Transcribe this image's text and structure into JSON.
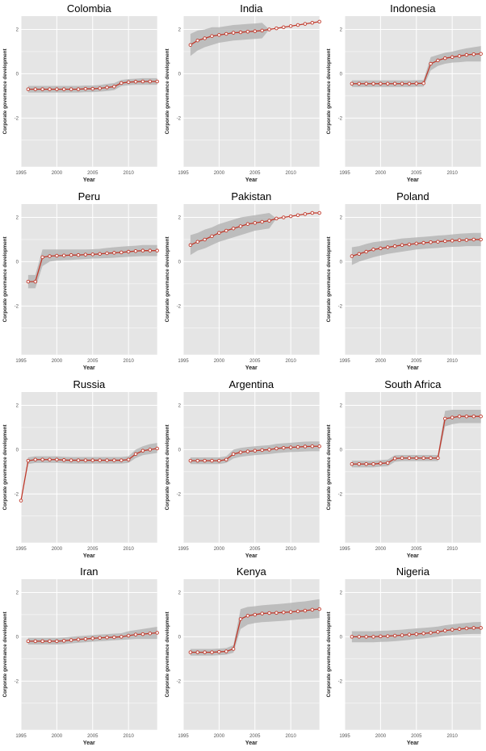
{
  "figure": {
    "ylabel": "Corporate governance development",
    "xlabel": "Year",
    "xticks": [
      1995,
      2000,
      2005,
      2010
    ],
    "yticks": [
      2,
      0,
      -2
    ],
    "xlim": [
      1995,
      2014
    ],
    "ylim": [
      -4.2,
      2.6
    ],
    "colors": {
      "panel_bg": "#e5e5e5",
      "grid": "#ffffff",
      "ribbon": "#b3b3b3",
      "line": "#c0392b",
      "point_fill": "#ffffff"
    }
  },
  "chart_data": [
    {
      "type": "line",
      "title": "Colombia",
      "x": [
        1996,
        1997,
        1998,
        1999,
        2000,
        2001,
        2002,
        2003,
        2004,
        2005,
        2006,
        2007,
        2008,
        2009,
        2010,
        2011,
        2012,
        2013,
        2014
      ],
      "series": [
        {
          "values": [
            -0.7,
            -0.7,
            -0.7,
            -0.7,
            -0.7,
            -0.7,
            -0.7,
            -0.7,
            -0.68,
            -0.68,
            -0.66,
            -0.62,
            -0.58,
            -0.42,
            -0.38,
            -0.36,
            -0.35,
            -0.35,
            -0.35
          ],
          "lower": [
            -0.85,
            -0.85,
            -0.85,
            -0.85,
            -0.85,
            -0.85,
            -0.85,
            -0.85,
            -0.83,
            -0.83,
            -0.81,
            -0.78,
            -0.74,
            -0.56,
            -0.52,
            -0.5,
            -0.5,
            -0.5,
            -0.5
          ],
          "upper": [
            -0.55,
            -0.55,
            -0.55,
            -0.55,
            -0.55,
            -0.55,
            -0.55,
            -0.55,
            -0.53,
            -0.53,
            -0.51,
            -0.46,
            -0.42,
            -0.28,
            -0.24,
            -0.22,
            -0.2,
            -0.2,
            -0.2
          ]
        }
      ]
    },
    {
      "type": "line",
      "title": "India",
      "x": [
        1996,
        1997,
        1998,
        1999,
        2000,
        2001,
        2002,
        2003,
        2004,
        2005,
        2006,
        2007,
        2008,
        2009,
        2010,
        2011,
        2012,
        2013,
        2014
      ],
      "series": [
        {
          "values": [
            1.3,
            1.5,
            1.6,
            1.7,
            1.75,
            1.8,
            1.85,
            1.87,
            1.9,
            1.92,
            1.95,
            2.0,
            2.05,
            2.1,
            2.15,
            2.2,
            2.25,
            2.3,
            2.35
          ],
          "lower": [
            0.8,
            1.05,
            1.2,
            1.3,
            1.4,
            1.45,
            1.5,
            1.52,
            1.55,
            1.57,
            1.6,
            2.0,
            2.05,
            2.1,
            2.15,
            2.2,
            2.25,
            2.3,
            2.35
          ],
          "upper": [
            1.8,
            1.95,
            2.0,
            2.1,
            2.1,
            2.15,
            2.2,
            2.22,
            2.25,
            2.27,
            2.3,
            2.0,
            2.05,
            2.1,
            2.15,
            2.2,
            2.25,
            2.3,
            2.35
          ]
        }
      ]
    },
    {
      "type": "line",
      "title": "Indonesia",
      "x": [
        1996,
        1997,
        1998,
        1999,
        2000,
        2001,
        2002,
        2003,
        2004,
        2005,
        2006,
        2007,
        2008,
        2009,
        2010,
        2011,
        2012,
        2013,
        2014
      ],
      "series": [
        {
          "values": [
            -0.45,
            -0.45,
            -0.45,
            -0.45,
            -0.45,
            -0.45,
            -0.45,
            -0.45,
            -0.45,
            -0.44,
            -0.43,
            0.45,
            0.6,
            0.7,
            0.75,
            0.8,
            0.85,
            0.88,
            0.9
          ],
          "lower": [
            -0.6,
            -0.6,
            -0.6,
            -0.6,
            -0.6,
            -0.6,
            -0.6,
            -0.6,
            -0.6,
            -0.59,
            -0.58,
            0.15,
            0.35,
            0.45,
            0.5,
            0.52,
            0.55,
            0.55,
            0.55
          ],
          "upper": [
            -0.3,
            -0.3,
            -0.3,
            -0.3,
            -0.3,
            -0.3,
            -0.3,
            -0.3,
            -0.3,
            -0.29,
            -0.28,
            0.75,
            0.85,
            0.95,
            1.0,
            1.08,
            1.15,
            1.2,
            1.25
          ]
        }
      ]
    },
    {
      "type": "line",
      "title": "Peru",
      "x": [
        1996,
        1997,
        1998,
        1999,
        2000,
        2001,
        2002,
        2003,
        2004,
        2005,
        2006,
        2007,
        2008,
        2009,
        2010,
        2011,
        2012,
        2013,
        2014
      ],
      "series": [
        {
          "values": [
            -0.9,
            -0.9,
            0.2,
            0.25,
            0.27,
            0.28,
            0.3,
            0.3,
            0.32,
            0.33,
            0.35,
            0.38,
            0.4,
            0.42,
            0.45,
            0.48,
            0.5,
            0.5,
            0.5
          ],
          "lower": [
            -1.2,
            -1.2,
            -0.2,
            0.0,
            0.05,
            0.07,
            0.08,
            0.1,
            0.12,
            0.14,
            0.15,
            0.16,
            0.18,
            0.2,
            0.22,
            0.24,
            0.25,
            0.25,
            0.25
          ],
          "upper": [
            -0.6,
            -0.6,
            0.55,
            0.55,
            0.55,
            0.55,
            0.55,
            0.55,
            0.55,
            0.56,
            0.58,
            0.62,
            0.65,
            0.68,
            0.7,
            0.72,
            0.75,
            0.75,
            0.75
          ]
        }
      ]
    },
    {
      "type": "line",
      "title": "Pakistan",
      "x": [
        1996,
        1997,
        1998,
        1999,
        2000,
        2001,
        2002,
        2003,
        2004,
        2005,
        2006,
        2007,
        2008,
        2009,
        2010,
        2011,
        2012,
        2013,
        2014
      ],
      "series": [
        {
          "values": [
            0.75,
            0.9,
            1.0,
            1.15,
            1.3,
            1.4,
            1.5,
            1.6,
            1.7,
            1.75,
            1.8,
            1.85,
            1.95,
            2.0,
            2.05,
            2.1,
            2.15,
            2.2,
            2.2
          ],
          "lower": [
            0.3,
            0.5,
            0.6,
            0.75,
            0.9,
            1.0,
            1.1,
            1.2,
            1.3,
            1.4,
            1.45,
            1.5,
            1.95,
            2.0,
            2.05,
            2.1,
            2.15,
            2.2,
            2.2
          ],
          "upper": [
            1.2,
            1.3,
            1.45,
            1.55,
            1.7,
            1.8,
            1.9,
            2.0,
            2.05,
            2.1,
            2.15,
            2.2,
            1.95,
            2.0,
            2.05,
            2.1,
            2.15,
            2.2,
            2.2
          ]
        }
      ]
    },
    {
      "type": "line",
      "title": "Poland",
      "x": [
        1996,
        1997,
        1998,
        1999,
        2000,
        2001,
        2002,
        2003,
        2004,
        2005,
        2006,
        2007,
        2008,
        2009,
        2010,
        2011,
        2012,
        2013,
        2014
      ],
      "series": [
        {
          "values": [
            0.25,
            0.35,
            0.45,
            0.55,
            0.6,
            0.65,
            0.7,
            0.75,
            0.78,
            0.82,
            0.85,
            0.88,
            0.9,
            0.93,
            0.95,
            0.97,
            0.98,
            1.0,
            1.0
          ],
          "lower": [
            -0.15,
            0.0,
            0.1,
            0.2,
            0.28,
            0.35,
            0.4,
            0.45,
            0.5,
            0.55,
            0.58,
            0.6,
            0.62,
            0.65,
            0.67,
            0.68,
            0.7,
            0.7,
            0.7
          ],
          "upper": [
            0.65,
            0.7,
            0.8,
            0.88,
            0.92,
            0.96,
            1.0,
            1.05,
            1.07,
            1.1,
            1.12,
            1.15,
            1.18,
            1.2,
            1.23,
            1.26,
            1.28,
            1.3,
            1.3
          ]
        }
      ]
    },
    {
      "type": "line",
      "title": "Russia",
      "x": [
        1995,
        1996,
        1997,
        1998,
        1999,
        2000,
        2001,
        2002,
        2003,
        2004,
        2005,
        2006,
        2007,
        2008,
        2009,
        2010,
        2011,
        2012,
        2013,
        2014
      ],
      "series": [
        {
          "values": [
            -2.3,
            -0.5,
            -0.45,
            -0.45,
            -0.45,
            -0.45,
            -0.47,
            -0.48,
            -0.48,
            -0.48,
            -0.48,
            -0.48,
            -0.48,
            -0.48,
            -0.48,
            -0.45,
            -0.2,
            -0.05,
            0.0,
            0.05
          ],
          "lower": [
            -2.3,
            -0.65,
            -0.6,
            -0.6,
            -0.6,
            -0.6,
            -0.62,
            -0.63,
            -0.63,
            -0.63,
            -0.63,
            -0.63,
            -0.63,
            -0.63,
            -0.63,
            -0.6,
            -0.38,
            -0.25,
            -0.2,
            -0.15
          ],
          "upper": [
            -2.3,
            -0.35,
            -0.3,
            -0.3,
            -0.3,
            -0.3,
            -0.32,
            -0.33,
            -0.33,
            -0.33,
            -0.33,
            -0.33,
            -0.33,
            -0.33,
            -0.33,
            -0.3,
            0.0,
            0.15,
            0.25,
            0.3
          ]
        }
      ]
    },
    {
      "type": "line",
      "title": "Argentina",
      "x": [
        1996,
        1997,
        1998,
        1999,
        2000,
        2001,
        2002,
        2003,
        2004,
        2005,
        2006,
        2007,
        2008,
        2009,
        2010,
        2011,
        2012,
        2013,
        2014
      ],
      "series": [
        {
          "values": [
            -0.5,
            -0.5,
            -0.5,
            -0.5,
            -0.5,
            -0.45,
            -0.2,
            -0.12,
            -0.08,
            -0.05,
            -0.02,
            0.0,
            0.05,
            0.08,
            0.1,
            0.12,
            0.14,
            0.15,
            0.15
          ],
          "lower": [
            -0.65,
            -0.65,
            -0.65,
            -0.65,
            -0.65,
            -0.6,
            -0.4,
            -0.32,
            -0.28,
            -0.25,
            -0.22,
            -0.2,
            -0.16,
            -0.13,
            -0.11,
            -0.1,
            -0.08,
            -0.07,
            -0.07
          ],
          "upper": [
            -0.35,
            -0.35,
            -0.35,
            -0.35,
            -0.35,
            -0.3,
            0.0,
            0.08,
            0.12,
            0.15,
            0.18,
            0.2,
            0.26,
            0.29,
            0.31,
            0.34,
            0.36,
            0.37,
            0.37
          ]
        }
      ]
    },
    {
      "type": "line",
      "title": "South Africa",
      "x": [
        1996,
        1997,
        1998,
        1999,
        2000,
        2001,
        2002,
        2003,
        2004,
        2005,
        2006,
        2007,
        2008,
        2009,
        2010,
        2011,
        2012,
        2013,
        2014
      ],
      "series": [
        {
          "values": [
            -0.65,
            -0.65,
            -0.65,
            -0.65,
            -0.62,
            -0.6,
            -0.4,
            -0.38,
            -0.38,
            -0.38,
            -0.38,
            -0.38,
            -0.38,
            1.4,
            1.45,
            1.5,
            1.5,
            1.5,
            1.5
          ],
          "lower": [
            -0.8,
            -0.8,
            -0.8,
            -0.8,
            -0.77,
            -0.75,
            -0.55,
            -0.52,
            -0.52,
            -0.52,
            -0.52,
            -0.52,
            -0.52,
            1.05,
            1.15,
            1.2,
            1.2,
            1.2,
            1.2
          ],
          "upper": [
            -0.5,
            -0.5,
            -0.5,
            -0.5,
            -0.47,
            -0.45,
            -0.25,
            -0.24,
            -0.24,
            -0.24,
            -0.24,
            -0.24,
            -0.24,
            1.75,
            1.8,
            1.8,
            1.8,
            1.8,
            1.8
          ]
        }
      ]
    },
    {
      "type": "line",
      "title": "Iran",
      "x": [
        1996,
        1997,
        1998,
        1999,
        2000,
        2001,
        2002,
        2003,
        2004,
        2005,
        2006,
        2007,
        2008,
        2009,
        2010,
        2011,
        2012,
        2013,
        2014
      ],
      "series": [
        {
          "values": [
            -0.2,
            -0.2,
            -0.2,
            -0.2,
            -0.2,
            -0.18,
            -0.15,
            -0.12,
            -0.1,
            -0.07,
            -0.05,
            -0.03,
            -0.02,
            0.0,
            0.05,
            0.1,
            0.12,
            0.15,
            0.18
          ],
          "lower": [
            -0.35,
            -0.35,
            -0.35,
            -0.35,
            -0.35,
            -0.33,
            -0.3,
            -0.27,
            -0.25,
            -0.22,
            -0.2,
            -0.18,
            -0.16,
            -0.14,
            -0.12,
            -0.1,
            -0.1,
            -0.1,
            -0.1
          ],
          "upper": [
            -0.05,
            -0.05,
            -0.05,
            -0.05,
            -0.05,
            -0.03,
            0.0,
            0.03,
            0.05,
            0.08,
            0.1,
            0.12,
            0.14,
            0.16,
            0.25,
            0.3,
            0.35,
            0.4,
            0.45
          ]
        }
      ]
    },
    {
      "type": "line",
      "title": "Kenya",
      "x": [
        1996,
        1997,
        1998,
        1999,
        2000,
        2001,
        2002,
        2003,
        2004,
        2005,
        2006,
        2007,
        2008,
        2009,
        2010,
        2011,
        2012,
        2013,
        2014
      ],
      "series": [
        {
          "values": [
            -0.7,
            -0.7,
            -0.7,
            -0.7,
            -0.68,
            -0.66,
            -0.55,
            0.8,
            0.95,
            1.0,
            1.05,
            1.07,
            1.08,
            1.1,
            1.12,
            1.15,
            1.18,
            1.22,
            1.25
          ],
          "lower": [
            -0.85,
            -0.85,
            -0.85,
            -0.85,
            -0.83,
            -0.81,
            -0.72,
            0.35,
            0.55,
            0.62,
            0.66,
            0.68,
            0.7,
            0.72,
            0.75,
            0.78,
            0.8,
            0.82,
            0.85
          ],
          "upper": [
            -0.55,
            -0.55,
            -0.55,
            -0.55,
            -0.53,
            -0.51,
            -0.38,
            1.25,
            1.35,
            1.38,
            1.42,
            1.45,
            1.47,
            1.5,
            1.53,
            1.57,
            1.6,
            1.65,
            1.7
          ]
        }
      ]
    },
    {
      "type": "line",
      "title": "Nigeria",
      "x": [
        1996,
        1997,
        1998,
        1999,
        2000,
        2001,
        2002,
        2003,
        2004,
        2005,
        2006,
        2007,
        2008,
        2009,
        2010,
        2011,
        2012,
        2013,
        2014
      ],
      "series": [
        {
          "values": [
            0.0,
            0.0,
            0.0,
            0.0,
            0.02,
            0.03,
            0.05,
            0.07,
            0.1,
            0.12,
            0.15,
            0.18,
            0.22,
            0.28,
            0.32,
            0.35,
            0.38,
            0.4,
            0.4
          ],
          "lower": [
            -0.25,
            -0.25,
            -0.25,
            -0.25,
            -0.23,
            -0.22,
            -0.2,
            -0.17,
            -0.14,
            -0.1,
            -0.07,
            -0.03,
            0.0,
            0.05,
            0.08,
            0.1,
            0.12,
            0.13,
            0.13
          ],
          "upper": [
            0.25,
            0.25,
            0.25,
            0.25,
            0.27,
            0.28,
            0.3,
            0.32,
            0.35,
            0.38,
            0.4,
            0.43,
            0.46,
            0.52,
            0.56,
            0.6,
            0.63,
            0.66,
            0.67
          ]
        }
      ]
    }
  ]
}
